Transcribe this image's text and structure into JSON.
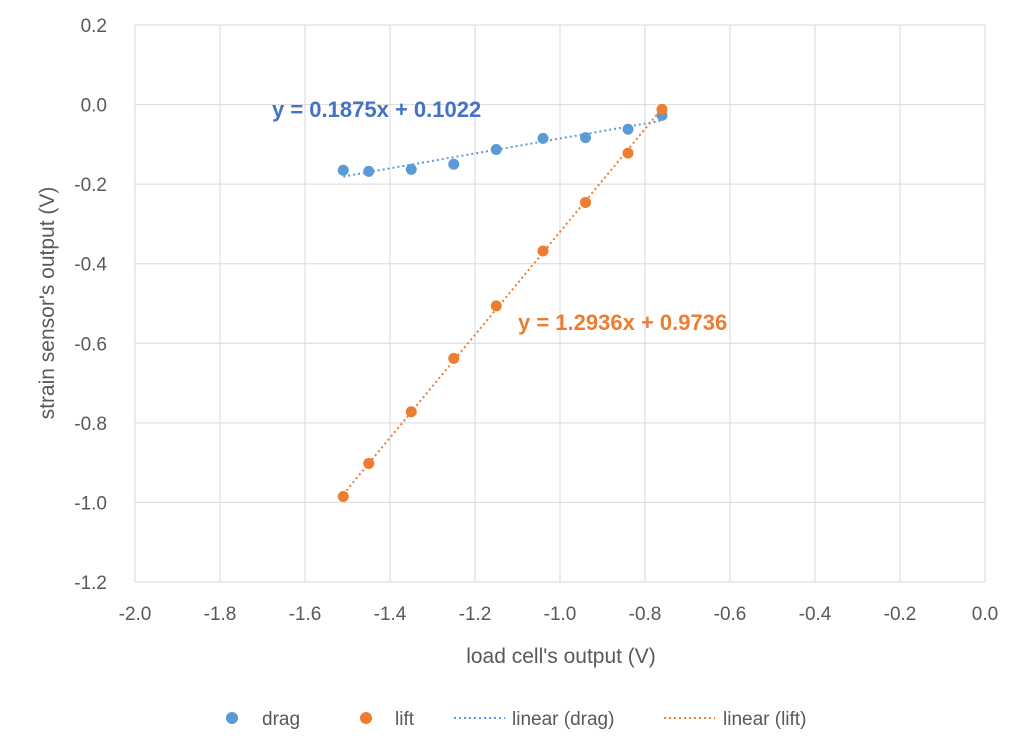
{
  "chart_data": {
    "type": "scatter",
    "title": "",
    "xlabel": "load cell's output (V)",
    "ylabel": "strain sensor's output (V)",
    "xlim": [
      -2.0,
      0.0
    ],
    "ylim": [
      -1.2,
      0.2
    ],
    "x_ticks": [
      "-2.0",
      "-1.8",
      "-1.6",
      "-1.4",
      "-1.2",
      "-1.0",
      "-0.8",
      "-0.6",
      "-0.4",
      "-0.2",
      "0.0"
    ],
    "y_ticks": [
      "0.2",
      "0.0",
      "-0.2",
      "-0.4",
      "-0.6",
      "-0.8",
      "-1.0",
      "-1.2"
    ],
    "grid": true,
    "legend_position": "bottom",
    "series": [
      {
        "name": "drag",
        "color": "#5B9BD5",
        "x": [
          -1.51,
          -1.45,
          -1.35,
          -1.25,
          -1.15,
          -1.04,
          -0.94,
          -0.84,
          -0.76
        ],
        "y": [
          -0.165,
          -0.168,
          -0.163,
          -0.15,
          -0.113,
          -0.085,
          -0.083,
          -0.062,
          -0.027
        ]
      },
      {
        "name": "lift",
        "color": "#ED7D31",
        "x": [
          -1.51,
          -1.45,
          -1.35,
          -1.25,
          -1.15,
          -1.04,
          -0.94,
          -0.84,
          -0.76
        ],
        "y": [
          -0.985,
          -0.902,
          -0.772,
          -0.638,
          -0.506,
          -0.368,
          -0.246,
          -0.122,
          -0.012
        ]
      }
    ],
    "trendlines": [
      {
        "name": "linear (drag)",
        "color": "#5B9BD5",
        "slope": 0.1875,
        "intercept": 0.1022,
        "x_range": [
          -1.51,
          -0.76
        ],
        "equation": "y = 0.1875x + 0.1022",
        "equation_color": "#4472C4"
      },
      {
        "name": "linear (lift)",
        "color": "#ED7D31",
        "slope": 1.2936,
        "intercept": 0.9736,
        "x_range": [
          -1.51,
          -0.76
        ],
        "equation": "y = 1.2936x + 0.9736",
        "equation_color": "#ED7D31"
      }
    ]
  }
}
